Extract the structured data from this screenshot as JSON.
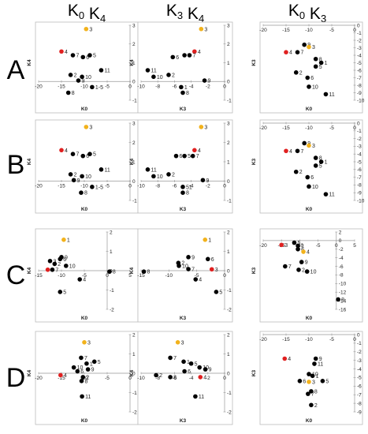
{
  "headers": [
    "K0 vs K4",
    "K3 vs K4",
    "K0 vs K3"
  ],
  "rows": [
    "A",
    "B",
    "C",
    "D"
  ],
  "colors": {
    "point": "#000000",
    "highlight_red": "#e02020",
    "highlight_yellow": "#f2b21c",
    "axis": "#999999"
  },
  "chart_data": [
    {
      "row": "A",
      "col": 0,
      "type": "scatter",
      "xlabel": "K0",
      "ylabel": "K4",
      "xlim": [
        -20,
        0
      ],
      "ylim": [
        -1,
        3
      ],
      "xticks": [
        -20,
        -15,
        -10,
        -5,
        0
      ],
      "yticks": [
        -1,
        0,
        1,
        2,
        3
      ],
      "points": [
        {
          "label": "3",
          "x": -9.6,
          "y": 2.8,
          "color": "yellow"
        },
        {
          "label": "4",
          "x": -15,
          "y": 1.6,
          "color": "red"
        },
        {
          "label": "7",
          "x": -12.5,
          "y": 1.4
        },
        {
          "label": "6",
          "x": -10.3,
          "y": 1.3
        },
        {
          "label": "5",
          "x": -8.8,
          "y": 1.4
        },
        {
          "label": "11",
          "x": -6.3,
          "y": 0.6
        },
        {
          "label": "2",
          "x": -13,
          "y": 0.35
        },
        {
          "label": "10",
          "x": -10.5,
          "y": 0.25
        },
        {
          "label": "9",
          "x": -11.3,
          "y": 0.05
        },
        {
          "label": "1-5",
          "x": -8.3,
          "y": -0.3
        },
        {
          "label": "8",
          "x": -13.5,
          "y": -0.6
        }
      ]
    },
    {
      "row": "A",
      "col": 1,
      "type": "scatter",
      "xlabel": "K3",
      "ylabel": "K4",
      "xlim": [
        -10,
        0
      ],
      "ylim": [
        -1,
        3
      ],
      "xticks": [
        -10,
        -8,
        -6,
        -4,
        -2,
        0
      ],
      "yticks": [
        -1,
        0,
        1,
        2,
        3
      ],
      "points": [
        {
          "label": "3",
          "x": -2.8,
          "y": 2.8,
          "color": "yellow"
        },
        {
          "label": "4",
          "x": -3.6,
          "y": 1.6,
          "color": "red"
        },
        {
          "label": "6",
          "x": -6.2,
          "y": 1.3
        },
        {
          "label": "5",
          "x": -4.8,
          "y": 1.4
        },
        {
          "label": "7",
          "x": -4.2,
          "y": 1.4
        },
        {
          "label": "11",
          "x": -9.2,
          "y": 0.6
        },
        {
          "label": "10",
          "x": -8.5,
          "y": 0.25
        },
        {
          "label": "2",
          "x": -6.7,
          "y": 0.35
        },
        {
          "label": "9",
          "x": -2.4,
          "y": 0.05
        },
        {
          "label": "1",
          "x": -5.2,
          "y": -0.3
        },
        {
          "label": "8",
          "x": -5,
          "y": -0.6
        }
      ]
    },
    {
      "row": "A",
      "col": 2,
      "type": "scatter",
      "xlabel": "K0",
      "ylabel": "K3",
      "xlim": [
        -20,
        0
      ],
      "ylim": [
        -10,
        0
      ],
      "xticks": [
        -20,
        -15,
        -10,
        -5,
        0
      ],
      "yticks": [
        -10,
        -9,
        -8,
        -7,
        -6,
        -5,
        -4,
        -3,
        -2,
        -1,
        0
      ],
      "points": [
        {
          "label": "9",
          "x": -11,
          "y": -2.6
        },
        {
          "label": "3",
          "x": -10,
          "y": -2.9,
          "color": "yellow"
        },
        {
          "label": "4",
          "x": -15,
          "y": -3.6,
          "color": "red"
        },
        {
          "label": "7",
          "x": -12.5,
          "y": -3.6
        },
        {
          "label": "8",
          "x": -8.5,
          "y": -4.5
        },
        {
          "label": "1",
          "x": -7.3,
          "y": -5
        },
        {
          "label": "5",
          "x": -8.5,
          "y": -5.5
        },
        {
          "label": "2",
          "x": -12.8,
          "y": -6.3
        },
        {
          "label": "6",
          "x": -10.3,
          "y": -7
        },
        {
          "label": "10",
          "x": -10,
          "y": -8.2
        },
        {
          "label": "11",
          "x": -6.3,
          "y": -9.2
        }
      ]
    },
    {
      "row": "B",
      "col": 0,
      "type": "scatter",
      "xlabel": "K0",
      "ylabel": "K4",
      "xlim": [
        -20,
        0
      ],
      "ylim": [
        -1,
        3
      ],
      "xticks": [
        -20,
        -15,
        -10,
        -5,
        0
      ],
      "yticks": [
        -1,
        0,
        1,
        2,
        3
      ],
      "points": [
        {
          "label": "3",
          "x": -9.6,
          "y": 2.8,
          "color": "yellow"
        },
        {
          "label": "4",
          "x": -15,
          "y": 1.6,
          "color": "red"
        },
        {
          "label": "7",
          "x": -12.5,
          "y": 1.4
        },
        {
          "label": "6",
          "x": -10.3,
          "y": 1.3
        },
        {
          "label": "5",
          "x": -8.8,
          "y": 1.4
        },
        {
          "label": "11",
          "x": -6.3,
          "y": 0.6
        },
        {
          "label": "2",
          "x": -13,
          "y": 0.35
        },
        {
          "label": "10",
          "x": -10.5,
          "y": 0.25
        },
        {
          "label": "9",
          "x": -12.3,
          "y": 0.05
        },
        {
          "label": "1-5",
          "x": -8.3,
          "y": -0.3
        },
        {
          "label": "8",
          "x": -10.7,
          "y": -0.6
        }
      ]
    },
    {
      "row": "B",
      "col": 1,
      "type": "scatter",
      "xlabel": "K3",
      "ylabel": "K4",
      "xlim": [
        -10,
        0
      ],
      "ylim": [
        -1,
        3
      ],
      "xticks": [
        -10,
        -8,
        -6,
        -4,
        -2,
        0
      ],
      "yticks": [
        -1,
        0,
        1,
        2,
        3
      ],
      "points": [
        {
          "label": "3",
          "x": -2.8,
          "y": 2.8,
          "color": "yellow"
        },
        {
          "label": "4",
          "x": -3.6,
          "y": 1.6,
          "color": "red"
        },
        {
          "label": "6",
          "x": -5.8,
          "y": 1.3
        },
        {
          "label": "5",
          "x": -4.8,
          "y": 1.3
        },
        {
          "label": "7",
          "x": -3.8,
          "y": 1.3
        },
        {
          "label": "11",
          "x": -9.2,
          "y": 0.6
        },
        {
          "label": "10",
          "x": -8.5,
          "y": 0.25
        },
        {
          "label": "2",
          "x": -6.7,
          "y": 0.35
        },
        {
          "label": "9",
          "x": -2.6,
          "y": 0.05
        },
        {
          "label": "51",
          "x": -5,
          "y": -0.3
        },
        {
          "label": "8",
          "x": -5,
          "y": -0.6
        }
      ]
    },
    {
      "row": "B",
      "col": 2,
      "type": "scatter",
      "xlabel": "K0",
      "ylabel": "K3",
      "xlim": [
        -20,
        0
      ],
      "ylim": [
        -10,
        0
      ],
      "xticks": [
        -20,
        -15,
        -10,
        -5,
        0
      ],
      "yticks": [
        -10,
        -9,
        -8,
        -7,
        -6,
        -5,
        -4,
        -3,
        -2,
        -1,
        0
      ],
      "points": [
        {
          "label": "9",
          "x": -11,
          "y": -2.6
        },
        {
          "label": "3",
          "x": -10,
          "y": -2.9,
          "color": "yellow"
        },
        {
          "label": "4",
          "x": -15,
          "y": -3.6,
          "color": "red"
        },
        {
          "label": "7",
          "x": -12.5,
          "y": -3.6
        },
        {
          "label": "8",
          "x": -8.5,
          "y": -4.5
        },
        {
          "label": "1",
          "x": -7.3,
          "y": -5
        },
        {
          "label": "5",
          "x": -8.5,
          "y": -5.5
        },
        {
          "label": "2",
          "x": -12.8,
          "y": -6.3
        },
        {
          "label": "6",
          "x": -10.3,
          "y": -7
        },
        {
          "label": "10",
          "x": -10,
          "y": -8.2
        },
        {
          "label": "11",
          "x": -6.3,
          "y": -9.2
        }
      ]
    },
    {
      "row": "C",
      "col": 0,
      "type": "scatter",
      "xlabel": "K0",
      "ylabel": "K4",
      "xlim": [
        -15,
        5
      ],
      "ylim": [
        -2,
        2
      ],
      "xticks": [
        -15,
        -10,
        -5,
        0,
        5
      ],
      "yticks": [
        -2,
        -1,
        0,
        1,
        2
      ],
      "points": [
        {
          "label": "1",
          "x": -9.5,
          "y": 1.6,
          "color": "yellow"
        },
        {
          "label": "9",
          "x": -10,
          "y": 0.7
        },
        {
          "label": "3",
          "x": -12.5,
          "y": 0.5
        },
        {
          "label": "6",
          "x": -10.3,
          "y": 0.6
        },
        {
          "label": "2",
          "x": -11.5,
          "y": 0.35
        },
        {
          "label": "10",
          "x": -9,
          "y": 0.25
        },
        {
          "label": "4",
          "x": -13,
          "y": 0.05,
          "color": "red"
        },
        {
          "label": "7",
          "x": -12,
          "y": 0.05
        },
        {
          "label": "8",
          "x": 0.5,
          "y": -0.05
        },
        {
          "label": "4",
          "x": -6,
          "y": -0.45
        },
        {
          "label": "5",
          "x": -10.3,
          "y": -1.1
        }
      ]
    },
    {
      "row": "C",
      "col": 1,
      "type": "scatter",
      "xlabel": "K3",
      "ylabel": "K4",
      "xlim": [
        -15,
        0
      ],
      "ylim": [
        -2,
        2
      ],
      "xticks": [
        -15,
        -10,
        -5,
        0
      ],
      "yticks": [
        -2,
        -1,
        0,
        1,
        2
      ],
      "points": [
        {
          "label": "1",
          "x": -3.5,
          "y": 1.6,
          "color": "yellow"
        },
        {
          "label": "9",
          "x": -6.5,
          "y": 0.7
        },
        {
          "label": "6",
          "x": -3,
          "y": 0.6
        },
        {
          "label": "2",
          "x": -8.3,
          "y": 0.4
        },
        {
          "label": "10",
          "x": -8.2,
          "y": 0.25
        },
        {
          "label": "7",
          "x": -6.5,
          "y": 0.08
        },
        {
          "label": "3",
          "x": -2.3,
          "y": 0.07,
          "color": "red"
        },
        {
          "label": "8",
          "x": -14.5,
          "y": -0.05
        },
        {
          "label": "4",
          "x": -5.2,
          "y": -0.45
        },
        {
          "label": "5",
          "x": -1.5,
          "y": -1.1
        }
      ]
    },
    {
      "row": "C",
      "col": 2,
      "type": "scatter",
      "xlabel": "K0",
      "ylabel": "K3",
      "xlim": [
        -20,
        5
      ],
      "ylim": [
        -16,
        2
      ],
      "xticks": [
        -20,
        -15,
        -10,
        -5,
        0,
        5
      ],
      "yticks": [
        -16,
        -14,
        -12,
        -10,
        -8,
        -6,
        -4,
        -2,
        0,
        2
      ],
      "points": [
        {
          "label": "3",
          "x": -15,
          "y": -1,
          "color": "red"
        },
        {
          "label": "5",
          "x": -11.5,
          "y": -0.5
        },
        {
          "label": "1",
          "x": -10.5,
          "y": -1.2
        },
        {
          "label": "6",
          "x": -10.5,
          "y": -2
        },
        {
          "label": "4",
          "x": -9,
          "y": -2.6,
          "color": "yellow"
        },
        {
          "label": "9",
          "x": -9.5,
          "y": -5
        },
        {
          "label": "7",
          "x": -14,
          "y": -6
        },
        {
          "label": "2",
          "x": -10.3,
          "y": -6.8
        },
        {
          "label": "10",
          "x": -8,
          "y": -7.2
        },
        {
          "label": "8",
          "x": 0.5,
          "y": -13.7
        }
      ]
    },
    {
      "row": "D",
      "col": 0,
      "type": "scatter",
      "xlabel": "K0",
      "ylabel": "K4",
      "xlim": [
        -20,
        0
      ],
      "ylim": [
        -2,
        2
      ],
      "xticks": [
        -20,
        -15,
        -10,
        -5,
        0
      ],
      "yticks": [
        -2,
        -1,
        0,
        1,
        2
      ],
      "points": [
        {
          "label": "3",
          "x": -10,
          "y": 1.6,
          "color": "yellow"
        },
        {
          "label": "7",
          "x": -10.7,
          "y": 0.8
        },
        {
          "label": "5",
          "x": -7.8,
          "y": 0.6
        },
        {
          "label": "1",
          "x": -9.5,
          "y": 0.5
        },
        {
          "label": "10",
          "x": -12.3,
          "y": 0.3
        },
        {
          "label": "9",
          "x": -9.2,
          "y": 0.2
        },
        {
          "label": "6",
          "x": -11.5,
          "y": 0.1
        },
        {
          "label": "4",
          "x": -15.2,
          "y": -0.1,
          "color": "red"
        },
        {
          "label": "2",
          "x": -10.3,
          "y": -0.2
        },
        {
          "label": "8",
          "x": -10.6,
          "y": -0.4
        },
        {
          "label": "11",
          "x": -10.5,
          "y": -1.2
        }
      ]
    },
    {
      "row": "D",
      "col": 1,
      "type": "scatter",
      "xlabel": "K3",
      "ylabel": "K4",
      "xlim": [
        -10,
        0
      ],
      "ylim": [
        -2,
        2
      ],
      "xticks": [
        -10,
        -8,
        -6,
        -4,
        -2,
        0
      ],
      "yticks": [
        -2,
        -1,
        0,
        1,
        2
      ],
      "points": [
        {
          "label": "3",
          "x": -5.6,
          "y": 1.6,
          "color": "yellow"
        },
        {
          "label": "7",
          "x": -6.5,
          "y": 0.8
        },
        {
          "label": "1",
          "x": -4.9,
          "y": 0.6
        },
        {
          "label": "5",
          "x": -4,
          "y": 0.5
        },
        {
          "label": "10",
          "x": -3,
          "y": 0.3
        },
        {
          "label": "9",
          "x": -2.3,
          "y": 0.2
        },
        {
          "label": "6",
          "x": -4.8,
          "y": 0.1
        },
        {
          "label": "2",
          "x": -8.2,
          "y": -0.1
        },
        {
          "label": "8",
          "x": -6.5,
          "y": -0.2
        },
        {
          "label": "4",
          "x": -2.9,
          "y": -0.2,
          "color": "red"
        },
        {
          "label": "11",
          "x": -3.5,
          "y": -1.2
        }
      ]
    },
    {
      "row": "D",
      "col": 2,
      "type": "scatter",
      "xlabel": "K0",
      "ylabel": "K3",
      "xlim": [
        -20,
        0
      ],
      "ylim": [
        -9,
        0
      ],
      "xticks": [
        -20,
        -15,
        -10,
        -5,
        0
      ],
      "yticks": [
        -9,
        -8,
        -7,
        -6,
        -5,
        -4,
        -3,
        -2,
        -1,
        0
      ],
      "points": [
        {
          "label": "4",
          "x": -15.3,
          "y": -2.8,
          "color": "red"
        },
        {
          "label": "9",
          "x": -8.5,
          "y": -2.8
        },
        {
          "label": "11",
          "x": -8.8,
          "y": -3.4
        },
        {
          "label": "10",
          "x": -10,
          "y": -4.6
        },
        {
          "label": "1",
          "x": -9.2,
          "y": -4.8
        },
        {
          "label": "6",
          "x": -12,
          "y": -5.4
        },
        {
          "label": "3",
          "x": -10,
          "y": -5.5,
          "color": "yellow"
        },
        {
          "label": "5",
          "x": -7,
          "y": -5.4
        },
        {
          "label": "8",
          "x": -9.5,
          "y": -6.6
        },
        {
          "label": "7",
          "x": -10.2,
          "y": -6.9
        },
        {
          "label": "2",
          "x": -9.5,
          "y": -8.2
        }
      ]
    }
  ]
}
